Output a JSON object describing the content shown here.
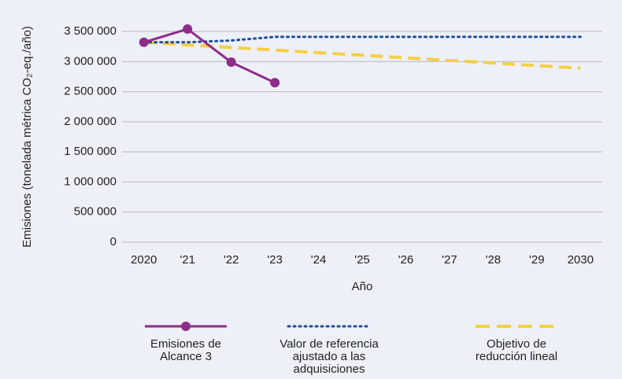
{
  "chart_data": {
    "type": "line",
    "y_label": "Emisiones (tonelada métrica CO₂-eq./año)",
    "x_label": "Año",
    "categories": [
      "2020",
      "'21",
      "'22",
      "'23",
      "'24",
      "'25",
      "'26",
      "'27",
      "'28",
      "'29",
      "2030"
    ],
    "ylim": [
      0,
      3500000
    ],
    "yticks": [
      0,
      {
        "value": 500000,
        "label": "500 000"
      },
      {
        "value": 1000000,
        "label": "1 000 000"
      },
      {
        "value": 1500000,
        "label": "1 500 000"
      },
      {
        "value": 2000000,
        "label": "2 000 000"
      },
      {
        "value": 2500000,
        "label": "2 500 000"
      },
      {
        "value": 3000000,
        "label": "3 000 000"
      },
      {
        "value": 3500000,
        "label": "3 500 000"
      }
    ],
    "grid": true,
    "legend": "bottom",
    "series": [
      {
        "name": "Emisiones de Alcance 3",
        "color": "#8e2c8a",
        "style": "solid",
        "marker": "circle",
        "values": [
          3320000,
          3540000,
          2990000,
          2650000,
          null,
          null,
          null,
          null,
          null,
          null,
          null
        ]
      },
      {
        "name": "Valor de referencia ajustado a las adquisiciones",
        "color": "#1f4e9c",
        "style": "dotted",
        "values": [
          3320000,
          3320000,
          3350000,
          3410000,
          3410000,
          3410000,
          3410000,
          3410000,
          3410000,
          3410000,
          3410000
        ]
      },
      {
        "name": "Objetivo de reducción lineal",
        "color": "#f5cf45",
        "style": "dashed",
        "values": [
          3320000,
          3277000,
          3234000,
          3191000,
          3148000,
          3105000,
          3062000,
          3019000,
          2976000,
          2933000,
          2890000
        ]
      }
    ]
  }
}
